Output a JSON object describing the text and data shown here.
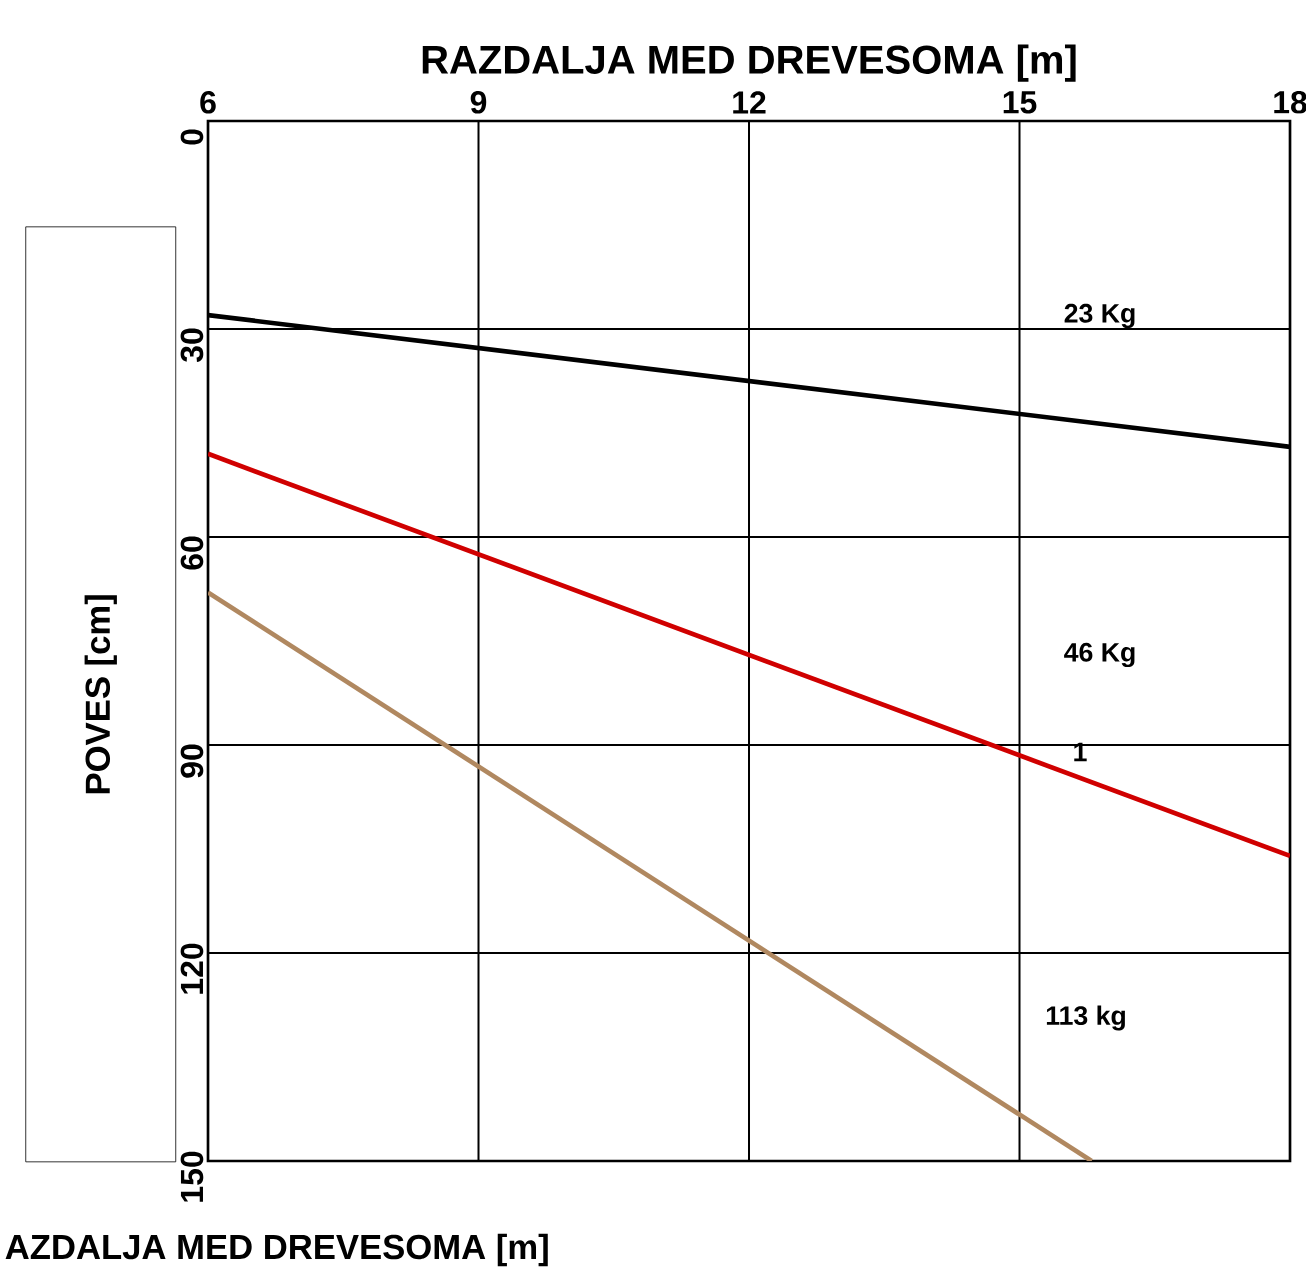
{
  "chart_data": {
    "type": "line",
    "xlabel": "RAZDALJA MED DREVESOMA [m]",
    "ylabel": "POVES [cm]",
    "xlim": [
      6,
      18
    ],
    "ylim": [
      150,
      0
    ],
    "xticks": [
      6,
      9,
      12,
      15,
      18
    ],
    "yticks": [
      0,
      30,
      60,
      90,
      120,
      150
    ],
    "grid": true,
    "line_style": "solid",
    "marker": "none",
    "series": [
      {
        "color": "#000000",
        "x": [
          6,
          18
        ],
        "values": [
          28,
          47
        ]
      },
      {
        "color": "#d00000",
        "x": [
          6,
          18
        ],
        "values": [
          48,
          106
        ]
      },
      {
        "color": "#b08860",
        "x": [
          6,
          15.8
        ],
        "values": [
          68,
          150
        ]
      }
    ],
    "annotations": [
      "23 Kg",
      "46 Kg",
      "1",
      "113 kg",
      "AZDALJA MED DREVESOMA [m]"
    ]
  }
}
